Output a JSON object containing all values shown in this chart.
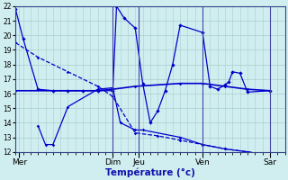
{
  "background_color": "#d0eef0",
  "grid_color": "#aacccc",
  "line_color": "#0000cc",
  "xlabel": "Température (°c)",
  "ylim": [
    12,
    22
  ],
  "yticks": [
    12,
    13,
    14,
    15,
    16,
    17,
    18,
    19,
    20,
    21,
    22
  ],
  "xlim": [
    0,
    36
  ],
  "day_labels": [
    "Mer",
    "Dim",
    "Jeu",
    "Ven",
    "Sar"
  ],
  "day_positions": [
    0.5,
    13,
    16.5,
    25,
    34
  ],
  "line1_x": [
    0,
    1,
    3,
    5,
    7,
    9,
    11,
    13,
    13.5,
    14.5,
    16,
    17,
    18,
    19,
    20,
    21,
    22,
    25,
    26,
    27,
    28,
    28.5,
    29,
    30,
    31,
    34
  ],
  "line1_y": [
    21.8,
    19.8,
    16.3,
    16.2,
    16.2,
    16.2,
    16.2,
    16.2,
    22.0,
    21.2,
    20.5,
    16.7,
    14.0,
    14.8,
    16.2,
    18.0,
    20.7,
    20.2,
    16.5,
    16.3,
    16.6,
    16.8,
    17.5,
    17.4,
    16.1,
    16.2
  ],
  "line2_x": [
    0,
    3,
    7,
    11,
    13,
    16,
    19,
    22,
    25,
    28,
    31,
    34
  ],
  "line2_y": [
    19.5,
    18.5,
    17.5,
    16.5,
    15.8,
    13.3,
    13.1,
    12.8,
    12.5,
    12.2,
    12.0,
    11.8
  ],
  "line3_x": [
    0,
    5,
    11,
    13,
    16,
    22,
    25,
    28,
    31,
    34
  ],
  "line3_y": [
    16.2,
    16.2,
    16.2,
    16.3,
    16.5,
    16.7,
    16.7,
    16.5,
    16.3,
    16.2
  ],
  "line4_x": [
    3,
    4,
    5,
    7,
    11,
    13,
    14,
    16,
    17,
    22,
    25,
    28,
    31,
    34
  ],
  "line4_y": [
    13.8,
    12.5,
    12.5,
    15.1,
    16.3,
    16.4,
    14.0,
    13.5,
    13.5,
    13.0,
    12.5,
    12.2,
    12.0,
    11.7
  ]
}
